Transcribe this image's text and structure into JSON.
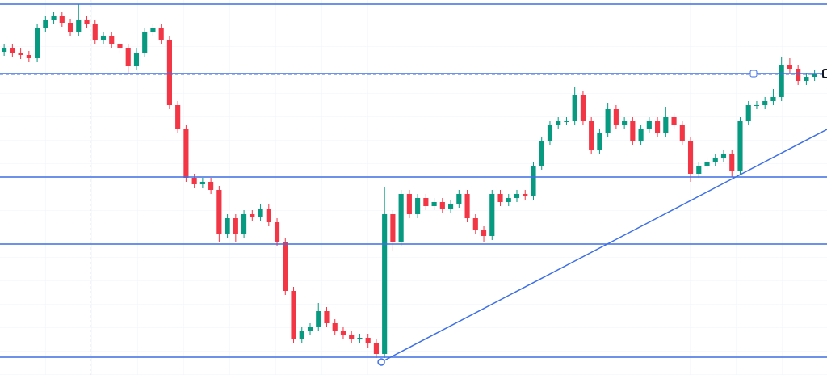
{
  "chart_data": {
    "type": "candlestick",
    "xlim": [
      0,
      100
    ],
    "ylim": [
      0,
      464
    ],
    "open": [
      400,
      404,
      399,
      396,
      392,
      429,
      439,
      444,
      436,
      424,
      439,
      434,
      414,
      419,
      409,
      404,
      382,
      399,
      424,
      429,
      414,
      334,
      304,
      244,
      236,
      239,
      229,
      174,
      194,
      174,
      199,
      196,
      206,
      189,
      164,
      104,
      44,
      54,
      59,
      79,
      64,
      54,
      49,
      44,
      46,
      39,
      26,
      199,
      164,
      224,
      199,
      219,
      209,
      214,
      206,
      212,
      224,
      194,
      179,
      172,
      224,
      214,
      219,
      224,
      222,
      259,
      289,
      309,
      314,
      314,
      346,
      314,
      279,
      299,
      329,
      309,
      314,
      289,
      304,
      314,
      299,
      319,
      309,
      289,
      249,
      259,
      264,
      269,
      274,
      252,
      314,
      334,
      334,
      339,
      344,
      384,
      379,
      364,
      369,
      372
    ],
    "high": [
      409,
      409,
      404,
      401,
      434,
      444,
      449,
      449,
      441,
      459,
      444,
      439,
      424,
      424,
      414,
      409,
      404,
      429,
      434,
      434,
      419,
      339,
      309,
      249,
      244,
      244,
      234,
      199,
      199,
      204,
      204,
      211,
      211,
      194,
      169,
      109,
      59,
      64,
      89,
      84,
      69,
      59,
      54,
      51,
      51,
      44,
      232,
      204,
      229,
      229,
      224,
      224,
      219,
      219,
      217,
      229,
      229,
      199,
      184,
      229,
      229,
      224,
      229,
      229,
      264,
      294,
      314,
      319,
      319,
      356,
      351,
      319,
      304,
      336,
      334,
      319,
      319,
      309,
      319,
      319,
      331,
      324,
      314,
      294,
      264,
      269,
      274,
      279,
      279,
      319,
      339,
      339,
      344,
      354,
      394,
      392,
      384,
      374,
      377,
      378
    ],
    "low": [
      395,
      394,
      391,
      387,
      387,
      424,
      434,
      431,
      419,
      419,
      429,
      409,
      409,
      404,
      399,
      372,
      377,
      394,
      419,
      409,
      329,
      299,
      239,
      231,
      231,
      224,
      164,
      169,
      164,
      169,
      191,
      191,
      184,
      159,
      99,
      39,
      39,
      49,
      54,
      59,
      49,
      44,
      39,
      39,
      34,
      21,
      21,
      154,
      159,
      194,
      194,
      204,
      204,
      201,
      201,
      207,
      189,
      174,
      164,
      167,
      209,
      209,
      214,
      217,
      217,
      254,
      284,
      304,
      309,
      309,
      309,
      274,
      274,
      294,
      304,
      304,
      284,
      284,
      299,
      294,
      294,
      304,
      284,
      239,
      244,
      254,
      259,
      264,
      245,
      247,
      309,
      329,
      329,
      334,
      339,
      374,
      359,
      359,
      364,
      367
    ],
    "close": [
      404,
      399,
      396,
      392,
      429,
      439,
      444,
      436,
      424,
      439,
      434,
      414,
      419,
      409,
      404,
      382,
      399,
      424,
      429,
      414,
      334,
      304,
      244,
      236,
      239,
      229,
      174,
      194,
      174,
      199,
      196,
      206,
      189,
      164,
      104,
      44,
      54,
      59,
      79,
      64,
      54,
      49,
      44,
      46,
      39,
      26,
      199,
      164,
      224,
      199,
      219,
      209,
      214,
      206,
      212,
      224,
      194,
      179,
      172,
      224,
      214,
      219,
      224,
      222,
      259,
      289,
      309,
      314,
      314,
      346,
      314,
      279,
      299,
      329,
      309,
      314,
      289,
      304,
      314,
      299,
      319,
      309,
      289,
      249,
      259,
      264,
      269,
      274,
      252,
      314,
      334,
      334,
      339,
      344,
      384,
      379,
      364,
      369,
      372,
      373
    ],
    "up_color": "#089981",
    "down_color": "#f23645",
    "levels": [
      459,
      373,
      245,
      162,
      22
    ],
    "level_color": "#3d6fe6",
    "price_line": 372,
    "trendline": {
      "x": [
        46.1,
        100
      ],
      "values": [
        16,
        304
      ]
    },
    "crosshair_x": 10.9
  }
}
